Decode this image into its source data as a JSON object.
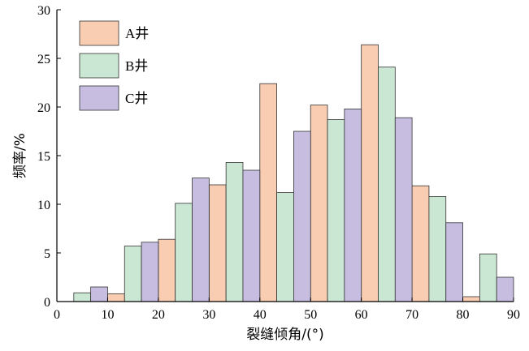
{
  "chart_data": {
    "type": "bar",
    "xlabel": "裂缝倾角/(°)",
    "ylabel": "频率/%",
    "xlim": [
      0,
      90
    ],
    "ylim": [
      0,
      30
    ],
    "xticks": [
      0,
      10,
      20,
      30,
      40,
      50,
      60,
      70,
      80,
      90
    ],
    "yticks": [
      0,
      5,
      10,
      15,
      20,
      25,
      30
    ],
    "grid": false,
    "legend_position": "top-left",
    "bin_width": 10,
    "series": [
      {
        "name": "A井",
        "color": "#f8cdb2",
        "bins": [
          [
            10,
            20
          ],
          [
            20,
            30
          ],
          [
            30,
            40
          ],
          [
            40,
            50
          ],
          [
            50,
            60
          ],
          [
            60,
            70
          ],
          [
            70,
            80
          ],
          [
            80,
            90
          ]
        ],
        "values": [
          0.8,
          6.4,
          12.0,
          22.4,
          20.2,
          26.4,
          11.9,
          0.5
        ]
      },
      {
        "name": "B井",
        "color": "#c9e7d2",
        "bins": [
          [
            0,
            10
          ],
          [
            10,
            20
          ],
          [
            20,
            30
          ],
          [
            30,
            40
          ],
          [
            40,
            50
          ],
          [
            50,
            60
          ],
          [
            60,
            70
          ],
          [
            70,
            80
          ],
          [
            80,
            90
          ]
        ],
        "values": [
          0.9,
          5.7,
          10.1,
          14.3,
          11.2,
          18.7,
          24.1,
          10.8,
          4.9
        ]
      },
      {
        "name": "C井",
        "color": "#c7bde0",
        "bins": [
          [
            0,
            10
          ],
          [
            10,
            20
          ],
          [
            20,
            30
          ],
          [
            30,
            40
          ],
          [
            40,
            50
          ],
          [
            50,
            60
          ],
          [
            60,
            70
          ],
          [
            70,
            80
          ],
          [
            80,
            90
          ]
        ],
        "values": [
          1.5,
          6.1,
          12.7,
          13.5,
          17.5,
          19.8,
          18.9,
          8.1,
          2.5
        ]
      }
    ]
  }
}
